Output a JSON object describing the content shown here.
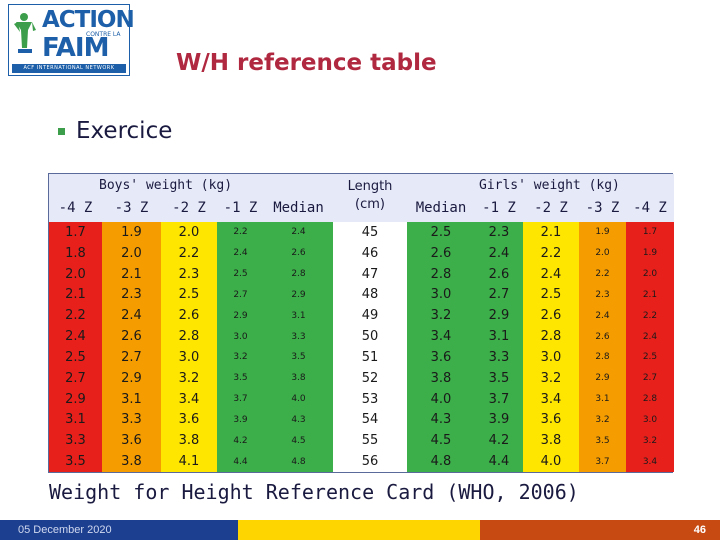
{
  "logo": {
    "line1": "ACTION",
    "line2": "CONTRE LA",
    "line3": "FAIM",
    "line4": "ACF INTERNATIONAL NETWORK"
  },
  "title": "W/H reference table",
  "bullet": "Exercice",
  "table": {
    "group_boys": "Boys' weight (kg)",
    "group_girls": "Girls' weight (kg)",
    "length_header_line1": "Length",
    "length_header_line2": "(cm)",
    "columns": [
      "-4 Z",
      "-3 Z",
      "-2 Z",
      "-1 Z",
      "Median",
      "",
      "Median",
      "-1 Z",
      "-2 Z",
      "-3 Z",
      "-4 Z"
    ],
    "colors": {
      "red": "#e8201c",
      "orange": "#f59c00",
      "yellow": "#ffe600",
      "green": "#3cae4a"
    },
    "rows": [
      [
        "1.7",
        "1.9",
        "2.0",
        "2.2",
        "2.4",
        "45",
        "2.5",
        "2.3",
        "2.1",
        "1.9",
        "1.7"
      ],
      [
        "1.8",
        "2.0",
        "2.2",
        "2.4",
        "2.6",
        "46",
        "2.6",
        "2.4",
        "2.2",
        "2.0",
        "1.9"
      ],
      [
        "2.0",
        "2.1",
        "2.3",
        "2.5",
        "2.8",
        "47",
        "2.8",
        "2.6",
        "2.4",
        "2.2",
        "2.0"
      ],
      [
        "2.1",
        "2.3",
        "2.5",
        "2.7",
        "2.9",
        "48",
        "3.0",
        "2.7",
        "2.5",
        "2.3",
        "2.1"
      ],
      [
        "2.2",
        "2.4",
        "2.6",
        "2.9",
        "3.1",
        "49",
        "3.2",
        "2.9",
        "2.6",
        "2.4",
        "2.2"
      ],
      [
        "2.4",
        "2.6",
        "2.8",
        "3.0",
        "3.3",
        "50",
        "3.4",
        "3.1",
        "2.8",
        "2.6",
        "2.4"
      ],
      [
        "2.5",
        "2.7",
        "3.0",
        "3.2",
        "3.5",
        "51",
        "3.6",
        "3.3",
        "3.0",
        "2.8",
        "2.5"
      ],
      [
        "2.7",
        "2.9",
        "3.2",
        "3.5",
        "3.8",
        "52",
        "3.8",
        "3.5",
        "3.2",
        "2.9",
        "2.7"
      ],
      [
        "2.9",
        "3.1",
        "3.4",
        "3.7",
        "4.0",
        "53",
        "4.0",
        "3.7",
        "3.4",
        "3.1",
        "2.8"
      ],
      [
        "3.1",
        "3.3",
        "3.6",
        "3.9",
        "4.3",
        "54",
        "4.3",
        "3.9",
        "3.6",
        "3.2",
        "3.0"
      ],
      [
        "3.3",
        "3.6",
        "3.8",
        "4.2",
        "4.5",
        "55",
        "4.5",
        "4.2",
        "3.8",
        "3.5",
        "3.2"
      ],
      [
        "3.5",
        "3.8",
        "4.1",
        "4.4",
        "4.8",
        "56",
        "4.8",
        "4.4",
        "4.0",
        "3.7",
        "3.4"
      ]
    ]
  },
  "caption": "Weight for Height Reference Card (WHO, 2006)",
  "footer": {
    "date": "05 December 2020",
    "page": "46"
  }
}
